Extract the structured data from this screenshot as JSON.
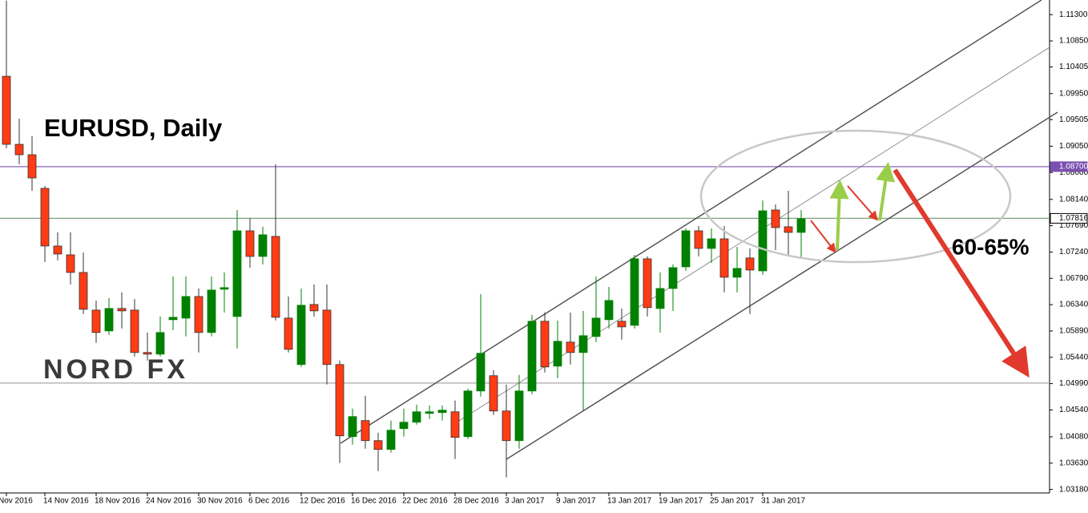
{
  "chart_data": {
    "type": "candlestick",
    "title": "EURUSD, Daily",
    "annotation": "60-65%",
    "logo": "NORD FX",
    "up_color": "#008000",
    "down_color": "#ff3c14",
    "ylim": [
      1.0312,
      1.1155
    ],
    "yticks": [
      {
        "value": 1.113,
        "label": "1.11300"
      },
      {
        "value": 1.1085,
        "label": "1.10850"
      },
      {
        "value": 1.10405,
        "label": "1.10405"
      },
      {
        "value": 1.0995,
        "label": "1.09950"
      },
      {
        "value": 1.09505,
        "label": "1.09505"
      },
      {
        "value": 1.0905,
        "label": "1.09050"
      },
      {
        "value": 1.086,
        "label": "1.08600"
      },
      {
        "value": 1.0814,
        "label": "1.08140"
      },
      {
        "value": 1.0769,
        "label": "1.07690"
      },
      {
        "value": 1.0724,
        "label": "1.07240"
      },
      {
        "value": 1.0679,
        "label": "1.06790"
      },
      {
        "value": 1.0634,
        "label": "1.06340"
      },
      {
        "value": 1.0589,
        "label": "1.05890"
      },
      {
        "value": 1.0544,
        "label": "1.05440"
      },
      {
        "value": 1.0499,
        "label": "1.04990"
      },
      {
        "value": 1.0454,
        "label": "1.04540"
      },
      {
        "value": 1.0408,
        "label": "1.04080"
      },
      {
        "value": 1.0363,
        "label": "1.03630"
      },
      {
        "value": 1.0318,
        "label": "1.03180"
      }
    ],
    "levels": [
      {
        "value": 1.087,
        "label": "1.08700",
        "color": "#7b4fb0"
      },
      {
        "value": 1.07816,
        "label": "1.07816",
        "color": "#7aa37a"
      },
      {
        "value": 1.05,
        "color": "#aaaaaa"
      }
    ],
    "categories": [
      "Nov 2016",
      null,
      null,
      "14 Nov 2016",
      null,
      null,
      null,
      "18 Nov 2016",
      null,
      null,
      null,
      "24 Nov 2016",
      null,
      null,
      null,
      "30 Nov 2016",
      null,
      null,
      null,
      "6 Dec 2016",
      null,
      null,
      null,
      "12 Dec 2016",
      null,
      null,
      null,
      "16 Dec 2016",
      null,
      null,
      null,
      "22 Dec 2016",
      null,
      null,
      null,
      "28 Dec 2016",
      null,
      null,
      null,
      "3 Jan 2017",
      null,
      null,
      null,
      "9 Jan 2017",
      null,
      null,
      null,
      "13 Jan 2017",
      null,
      null,
      null,
      "19 Jan 2017",
      null,
      null,
      null,
      "25 Jan 2017",
      null,
      null,
      null,
      "31 Jan 2017",
      null,
      null,
      null
    ],
    "values": [
      [
        1.10246,
        1.1154,
        1.09014,
        1.09082
      ],
      [
        1.09082,
        1.0952,
        1.0874,
        1.08904
      ],
      [
        1.08904,
        1.09219,
        1.08288,
        1.08507
      ],
      [
        1.08329,
        1.0837,
        1.07069,
        1.07343
      ],
      [
        1.07343,
        1.07576,
        1.07096,
        1.07206
      ],
      [
        1.07192,
        1.07576,
        1.06686,
        1.06891
      ],
      [
        1.06891,
        1.07233,
        1.06179,
        1.06261
      ],
      [
        1.06247,
        1.06412,
        1.05686,
        1.05864
      ],
      [
        1.05891,
        1.06453,
        1.05823,
        1.06275
      ],
      [
        1.06275,
        1.06549,
        1.05932,
        1.06234
      ],
      [
        1.06247,
        1.06439,
        1.05453,
        1.05522
      ],
      [
        1.05522,
        1.05864,
        1.05385,
        1.05494
      ],
      [
        1.05494,
        1.06138,
        1.05453,
        1.05864
      ],
      [
        1.06083,
        1.06823,
        1.05905,
        1.06124
      ],
      [
        1.0611,
        1.06823,
        1.05796,
        1.0648
      ],
      [
        1.0648,
        1.06617,
        1.05522,
        1.05864
      ],
      [
        1.05864,
        1.06823,
        1.05796,
        1.0659
      ],
      [
        1.06604,
        1.06891,
        1.06206,
        1.06631
      ],
      [
        1.06138,
        1.07959,
        1.0559,
        1.07603
      ],
      [
        1.07603,
        1.07822,
        1.06973,
        1.07165
      ],
      [
        1.07165,
        1.07672,
        1.07028,
        1.07535
      ],
      [
        1.07507,
        1.0874,
        1.06069,
        1.06124
      ],
      [
        1.0611,
        1.0648,
        1.05522,
        1.05576
      ],
      [
        1.05316,
        1.06617,
        1.05275,
        1.0633
      ],
      [
        1.06343,
        1.06686,
        1.06138,
        1.06234
      ],
      [
        1.06247,
        1.06686,
        1.04974,
        1.05316
      ],
      [
        1.05316,
        1.05385,
        1.03632,
        1.04097
      ],
      [
        1.04084,
        1.04563,
        1.03947,
        1.04426
      ],
      [
        1.04358,
        1.04782,
        1.03878,
        1.04015
      ],
      [
        1.04015,
        1.04152,
        1.03495,
        1.03865
      ],
      [
        1.03865,
        1.04358,
        1.0381,
        1.04193
      ],
      [
        1.04221,
        1.04563,
        1.04084,
        1.0433
      ],
      [
        1.0433,
        1.04632,
        1.04289,
        1.04508
      ],
      [
        1.04481,
        1.04618,
        1.04385,
        1.04508
      ],
      [
        1.04495,
        1.04618,
        1.04358,
        1.04536
      ],
      [
        1.04508,
        1.047,
        1.037,
        1.0407
      ],
      [
        1.04084,
        1.04905,
        1.04043,
        1.04864
      ],
      [
        1.04864,
        1.06521,
        1.04768,
        1.05508
      ],
      [
        1.05125,
        1.0522,
        1.04454,
        1.04522
      ],
      [
        1.04522,
        1.04974,
        1.03385,
        1.04015
      ],
      [
        1.04015,
        1.05138,
        1.03878,
        1.04864
      ],
      [
        1.04864,
        1.06165,
        1.0481,
        1.06056
      ],
      [
        1.06056,
        1.06206,
        1.05179,
        1.05275
      ],
      [
        1.05289,
        1.06069,
        1.05083,
        1.05713
      ],
      [
        1.057,
        1.06206,
        1.05316,
        1.05522
      ],
      [
        1.05522,
        1.06234,
        1.04536,
        1.05809
      ],
      [
        1.05796,
        1.06823,
        1.057,
        1.0611
      ],
      [
        1.06083,
        1.06645,
        1.05932,
        1.06412
      ],
      [
        1.06056,
        1.06275,
        1.05741,
        1.0596
      ],
      [
        1.05987,
        1.07192,
        1.05932,
        1.07124
      ],
      [
        1.07124,
        1.07165,
        1.06138,
        1.06289
      ],
      [
        1.06275,
        1.06891,
        1.05864,
        1.06617
      ],
      [
        1.06617,
        1.07028,
        1.06234,
        1.06973
      ],
      [
        1.06987,
        1.07644,
        1.06918,
        1.07603
      ],
      [
        1.07603,
        1.07685,
        1.07165,
        1.07302
      ],
      [
        1.07302,
        1.07644,
        1.07055,
        1.07466
      ],
      [
        1.07466,
        1.07685,
        1.0655,
        1.06809
      ],
      [
        1.06809,
        1.07329,
        1.0655,
        1.0696
      ],
      [
        1.07138,
        1.07302,
        1.06179,
        1.06932
      ],
      [
        1.06918,
        1.08123,
        1.0685,
        1.07945
      ],
      [
        1.07959,
        1.08055,
        1.07274,
        1.07658
      ],
      [
        1.07672,
        1.08288,
        1.07192,
        1.07576
      ],
      [
        1.07576,
        1.07959,
        1.07138,
        1.07809
      ]
    ]
  }
}
